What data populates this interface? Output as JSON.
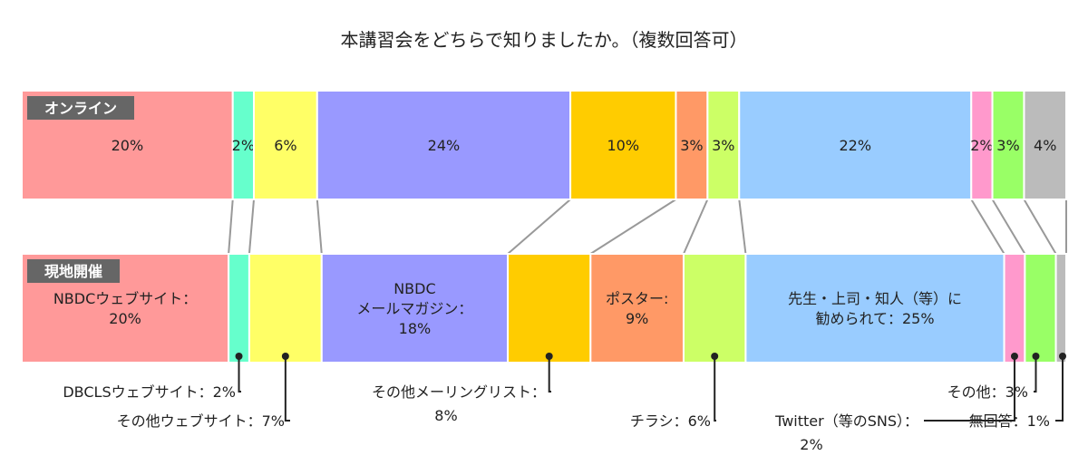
{
  "chart_data": {
    "type": "bar",
    "subtype": "100%-stacked-horizontal",
    "title": "本講習会をどちらで知りましたか。（複数回答可）",
    "categories": [
      "NBDCウェブサイト",
      "DBCLSウェブサイト",
      "その他ウェブサイト",
      "NBDCメールマガジン",
      "その他メーリングリスト",
      "ポスター",
      "チラシ",
      "先生・上司・知人（等）に勧められて",
      "Twitter（等のSNS）",
      "その他",
      "無回答"
    ],
    "colors": [
      "#ff9999",
      "#66ffcc",
      "#ffff66",
      "#9999ff",
      "#ffcc00",
      "#ff9966",
      "#ccff66",
      "#99ccff",
      "#ff99cc",
      "#99ff66",
      "#bbbbbb"
    ],
    "series": [
      {
        "name": "オンライン",
        "values": [
          20,
          2,
          6,
          24,
          10,
          3,
          3,
          22,
          2,
          3,
          4
        ],
        "labels": [
          "20%",
          "2%",
          "6%",
          "24%",
          "10%",
          "3%",
          "3%",
          "22%",
          "2%",
          "3%",
          "4%"
        ]
      },
      {
        "name": "現地開催",
        "values": [
          20,
          2,
          7,
          18,
          8,
          9,
          6,
          25,
          2,
          3,
          1
        ],
        "labels": [
          [
            "NBDCウェブサイト：",
            "20%"
          ],
          [],
          [],
          [
            "NBDC",
            "メールマガジン：",
            "18%"
          ],
          [],
          [
            "ポスター:",
            "9%"
          ],
          [],
          [
            "先生・上司・知人（等）に",
            "勧められて：25%"
          ],
          [],
          [],
          []
        ]
      }
    ],
    "callouts": [
      {
        "index": 1,
        "lines": [
          "DBCLSウェブサイト：2%"
        ]
      },
      {
        "index": 2,
        "lines": [
          "その他ウェブサイト：7%"
        ]
      },
      {
        "index": 4,
        "lines": [
          "その他メーリングリスト：",
          "8%"
        ]
      },
      {
        "index": 6,
        "lines": [
          "チラシ：6%"
        ]
      },
      {
        "index": 8,
        "lines": [
          "Twitter（等のSNS）：",
          "2%"
        ]
      },
      {
        "index": 9,
        "lines": [
          "その他：3%"
        ]
      },
      {
        "index": 10,
        "lines": [
          "無回答：1%"
        ]
      }
    ]
  }
}
